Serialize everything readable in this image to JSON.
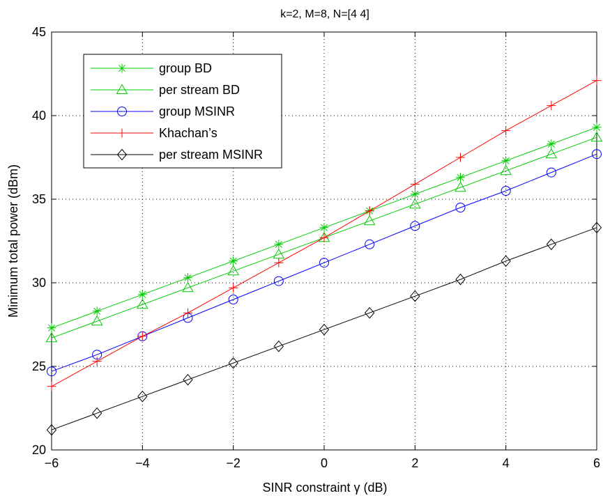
{
  "chart_data": {
    "type": "line",
    "title": "k=2, M=8, N=[4 4]",
    "xlabel": "SINR constraint γ (dB)",
    "ylabel": "Minimum total power (dBm)",
    "xlim": [
      -6,
      6
    ],
    "ylim": [
      20,
      45
    ],
    "xticks": [
      "−6",
      "−4",
      "−2",
      "0",
      "2",
      "4",
      "6"
    ],
    "yticks": [
      "20",
      "25",
      "30",
      "35",
      "40",
      "45"
    ],
    "grid": true,
    "legend_position": "top-left",
    "x": [
      -6,
      -5,
      -4,
      -3,
      -2,
      -1,
      0,
      1,
      2,
      3,
      4,
      5,
      6
    ],
    "series": [
      {
        "name": "group BD",
        "color": "#00cc00",
        "marker": "asterisk",
        "values": [
          27.3,
          28.3,
          29.3,
          30.3,
          31.3,
          32.3,
          33.3,
          34.3,
          35.3,
          36.3,
          37.3,
          38.3,
          39.3
        ]
      },
      {
        "name": "per stream BD",
        "color": "#00cc00",
        "marker": "triangle",
        "values": [
          26.7,
          27.7,
          28.7,
          29.7,
          30.7,
          31.7,
          32.7,
          33.7,
          34.7,
          35.7,
          36.7,
          37.7,
          38.7
        ]
      },
      {
        "name": "group MSINR",
        "color": "#0000ff",
        "marker": "circle",
        "values": [
          24.7,
          25.7,
          26.8,
          27.9,
          29.0,
          30.1,
          31.2,
          32.3,
          33.4,
          34.5,
          35.5,
          36.6,
          37.7
        ]
      },
      {
        "name": "Khachan’s",
        "color": "#ff0000",
        "marker": "plus",
        "values": [
          23.8,
          25.3,
          26.8,
          28.2,
          29.7,
          31.2,
          32.7,
          34.3,
          35.9,
          37.5,
          39.1,
          40.6,
          42.1
        ]
      },
      {
        "name": "per stream MSINR",
        "color": "#000000",
        "marker": "diamond",
        "values": [
          21.2,
          22.2,
          23.2,
          24.2,
          25.2,
          26.2,
          27.2,
          28.2,
          29.2,
          30.2,
          31.3,
          32.3,
          33.3
        ]
      }
    ]
  }
}
